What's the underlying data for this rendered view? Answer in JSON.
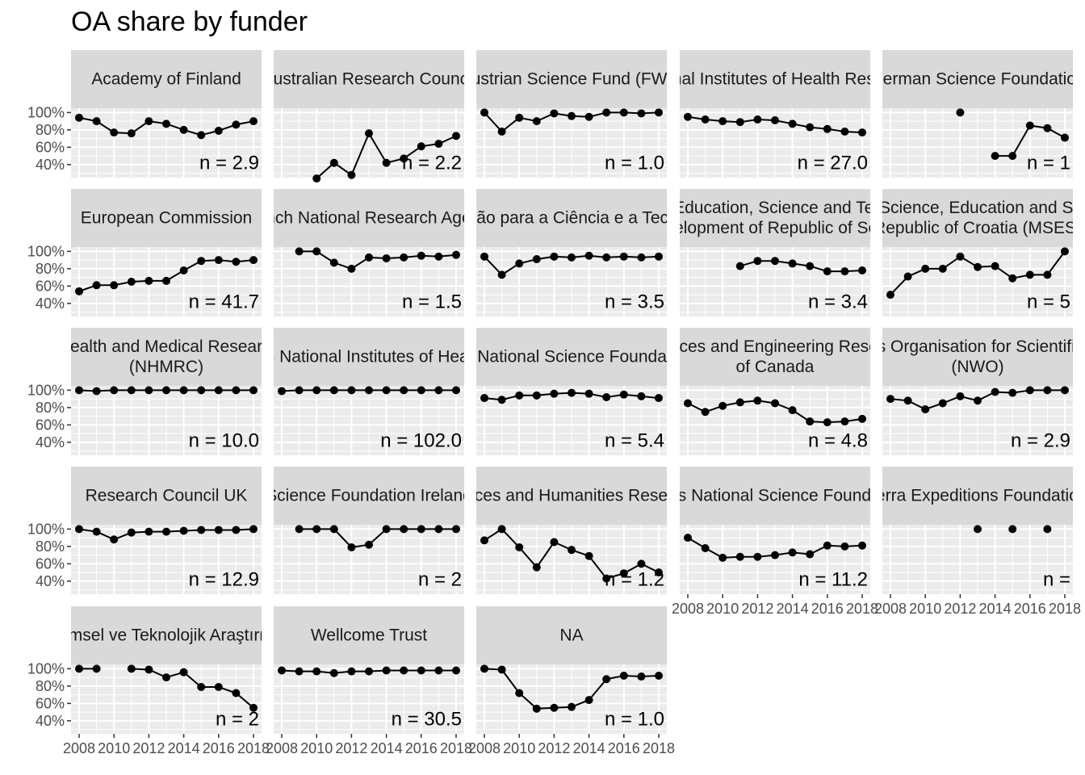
{
  "chart_data": {
    "type": "line",
    "title": "OA share by funder",
    "xlabel": "",
    "ylabel": "",
    "x_ticks": [
      "2008",
      "2010",
      "2012",
      "2014",
      "2016",
      "2018"
    ],
    "y_ticks": [
      "40%",
      "60%",
      "80%",
      "100%"
    ],
    "xlim": [
      2008,
      2018
    ],
    "ylim": [
      25,
      105
    ],
    "grid": true,
    "x": [
      2008,
      2009,
      2010,
      2011,
      2012,
      2013,
      2014,
      2015,
      2016,
      2017,
      2018
    ],
    "panels": [
      {
        "strip": [
          "Academy of Finland"
        ],
        "n_label": "n = 2.9",
        "values": [
          94,
          90,
          77,
          76,
          90,
          87,
          80,
          74,
          79,
          86,
          90
        ]
      },
      {
        "strip": [
          "Australian Research Council"
        ],
        "n_label": "n = 2.2",
        "values": [
          null,
          null,
          24,
          42,
          28,
          76,
          42,
          47,
          61,
          64,
          73
        ]
      },
      {
        "strip": [
          "Austrian Science Fund (FWF)"
        ],
        "n_label": "n = 1.0",
        "values": [
          100,
          78,
          94,
          90,
          99,
          96,
          95,
          100,
          100,
          99,
          100
        ]
      },
      {
        "strip": [
          "National Institutes of Health Research"
        ],
        "n_label": "n = 27.0",
        "values": [
          95,
          92,
          90,
          89,
          92,
          91,
          87,
          83,
          81,
          78,
          77
        ]
      },
      {
        "strip": [
          "German Science Foundation"
        ],
        "n_label": "n = 1",
        "values": [
          null,
          null,
          null,
          null,
          100,
          null,
          50,
          50,
          85,
          82,
          71
        ]
      },
      {
        "strip": [
          "European Commission"
        ],
        "n_label": "n = 41.7",
        "values": [
          54,
          61,
          61,
          65,
          66,
          66,
          78,
          89,
          90,
          88,
          90
        ]
      },
      {
        "strip": [
          "French National Research Agency"
        ],
        "n_label": "n = 1.5",
        "values": [
          null,
          100,
          100,
          87,
          80,
          93,
          92,
          93,
          95,
          94,
          96
        ]
      },
      {
        "strip": [
          "Fundação para a Ciência e a Tecnologia"
        ],
        "n_label": "n = 3.5",
        "values": [
          94,
          73,
          86,
          91,
          94,
          93,
          95,
          93,
          94,
          93,
          94
        ]
      },
      {
        "strip": [
          "Ministry of Education, Science and Technological",
          "Development of Republic of Serbia"
        ],
        "n_label": "n = 3.4",
        "values": [
          null,
          null,
          null,
          83,
          89,
          89,
          86,
          83,
          77,
          77,
          78
        ]
      },
      {
        "strip": [
          "Ministry of Science, Education and Sports of the",
          "Republic of Croatia (MSES)"
        ],
        "n_label": "n = 5",
        "values": [
          50,
          71,
          80,
          80,
          94,
          82,
          83,
          69,
          73,
          73,
          100
        ]
      },
      {
        "strip": [
          "National Health and Medical Research Council",
          "(NHMRC)"
        ],
        "n_label": "n = 10.0",
        "values": [
          100,
          99,
          100,
          100,
          100,
          100,
          100,
          100,
          100,
          100,
          100
        ]
      },
      {
        "strip": [
          "US National Institutes of Health"
        ],
        "n_label": "n = 102.0",
        "values": [
          99,
          100,
          100,
          100,
          100,
          100,
          100,
          100,
          100,
          100,
          100
        ]
      },
      {
        "strip": [
          "US National Science Foundation"
        ],
        "n_label": "n = 5.4",
        "values": [
          91,
          89,
          94,
          94,
          96,
          97,
          96,
          92,
          95,
          93,
          91
        ]
      },
      {
        "strip": [
          "Natural Sciences and Engineering Research Council",
          "of Canada"
        ],
        "n_label": "n = 4.8",
        "values": [
          85,
          75,
          82,
          86,
          88,
          85,
          77,
          64,
          63,
          64,
          67
        ]
      },
      {
        "strip": [
          "Netherlands Organisation for Scientific Research",
          "(NWO)"
        ],
        "n_label": "n = 2.9",
        "values": [
          90,
          88,
          78,
          85,
          93,
          88,
          98,
          97,
          100,
          100,
          100
        ]
      },
      {
        "strip": [
          "Research Council UK"
        ],
        "n_label": "n = 12.9",
        "values": [
          100,
          97,
          88,
          96,
          97,
          97,
          98,
          99,
          99,
          99,
          100
        ]
      },
      {
        "strip": [
          "Science Foundation Ireland"
        ],
        "n_label": "n = 2",
        "values": [
          null,
          100,
          100,
          100,
          79,
          82,
          100,
          100,
          100,
          100,
          100
        ]
      },
      {
        "strip": [
          "Social Sciences and Humanities Research Council"
        ],
        "n_label": "n = 1.2",
        "values": [
          87,
          100,
          79,
          56,
          85,
          76,
          69,
          43,
          49,
          60,
          50
        ]
      },
      {
        "strip": [
          "Swiss National Science Foundation"
        ],
        "n_label": "n = 11.2",
        "values": [
          90,
          78,
          67,
          68,
          68,
          70,
          73,
          71,
          81,
          80,
          81
        ]
      },
      {
        "strip": [
          "Terra Expeditions Foundation"
        ],
        "n_label": "n =",
        "values": [
          null,
          null,
          null,
          null,
          null,
          100,
          null,
          100,
          null,
          100,
          null
        ]
      },
      {
        "strip": [
          "Türkiye Bilimsel ve Teknolojik Araştırma Kurumu"
        ],
        "n_label": "n = 2",
        "values": [
          100,
          100,
          null,
          100,
          99,
          90,
          96,
          79,
          79,
          72,
          55
        ]
      },
      {
        "strip": [
          "Wellcome Trust"
        ],
        "n_label": "n = 30.5",
        "values": [
          98,
          97,
          97,
          95,
          97,
          97,
          98,
          98,
          98,
          98,
          98
        ]
      },
      {
        "strip": [
          "NA"
        ],
        "n_label": "n = 1.0",
        "values": [
          100,
          99,
          72,
          54,
          55,
          56,
          64,
          88,
          92,
          91,
          92
        ]
      }
    ]
  }
}
